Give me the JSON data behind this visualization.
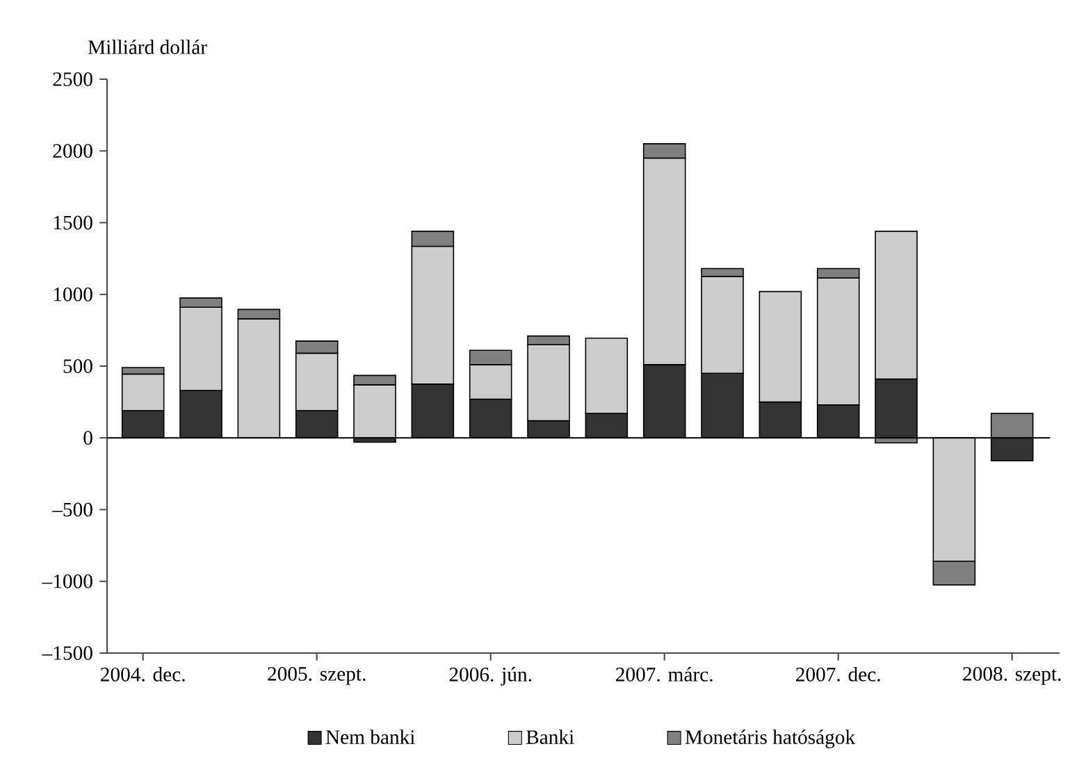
{
  "chart_data": {
    "type": "bar",
    "ylabel": "Milliárd dollár",
    "categories": [
      "2004. dec.",
      null,
      null,
      "2005. szept.",
      null,
      null,
      "2006. jún.",
      null,
      null,
      "2007. márc.",
      null,
      null,
      "2007. dec.",
      null,
      null,
      "2008. szept."
    ],
    "series": [
      {
        "name": "Nem banki",
        "color": "#333333",
        "values": [
          190,
          330,
          0,
          190,
          -30,
          375,
          270,
          120,
          170,
          510,
          450,
          250,
          230,
          410,
          0,
          -160
        ]
      },
      {
        "name": "Banki",
        "color": "#cccccc",
        "values": [
          255,
          580,
          830,
          400,
          370,
          960,
          240,
          530,
          525,
          1440,
          675,
          770,
          885,
          1030,
          -860,
          0
        ]
      },
      {
        "name": "Monetáris hatóságok",
        "color": "#808080",
        "values": [
          45,
          65,
          65,
          85,
          65,
          105,
          100,
          60,
          0,
          100,
          55,
          0,
          65,
          -35,
          -165,
          170
        ]
      }
    ],
    "stacked": true,
    "ylim": [
      -1500,
      2500
    ],
    "yticks": [
      {
        "value": -1500,
        "label": "–1500"
      },
      {
        "value": -1000,
        "label": "–1000"
      },
      {
        "value": -500,
        "label": "–500"
      },
      0,
      500,
      1000,
      1500,
      2000,
      2500
    ],
    "ref_lines": [
      {
        "axis": "y",
        "value": 0
      }
    ],
    "legend": "bottom"
  }
}
